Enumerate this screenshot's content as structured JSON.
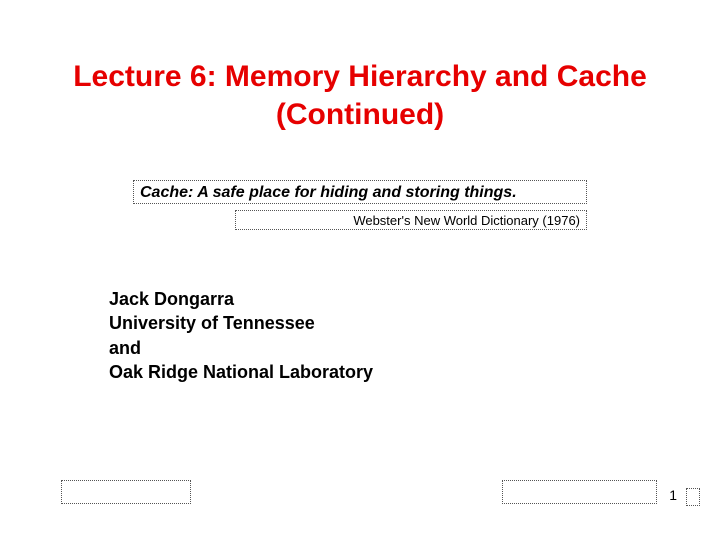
{
  "title": "Lecture 6: Memory Hierarchy and Cache (Continued)",
  "quote": "Cache: A safe place for hiding and storing things.",
  "source": "Webster's New World Dictionary (1976)",
  "author": {
    "name": "Jack Dongarra",
    "affiliation1": "University of Tennessee",
    "and": "and",
    "affiliation2": "Oak Ridge National Laboratory"
  },
  "page_number": "1",
  "colors": {
    "title": "#e60000",
    "text": "#000000",
    "border": "#555555",
    "background": "#ffffff"
  },
  "fonts": {
    "title_size_pt": 30,
    "quote_size_pt": 16,
    "source_size_pt": 13,
    "author_size_pt": 18,
    "page_number_size_pt": 14
  }
}
